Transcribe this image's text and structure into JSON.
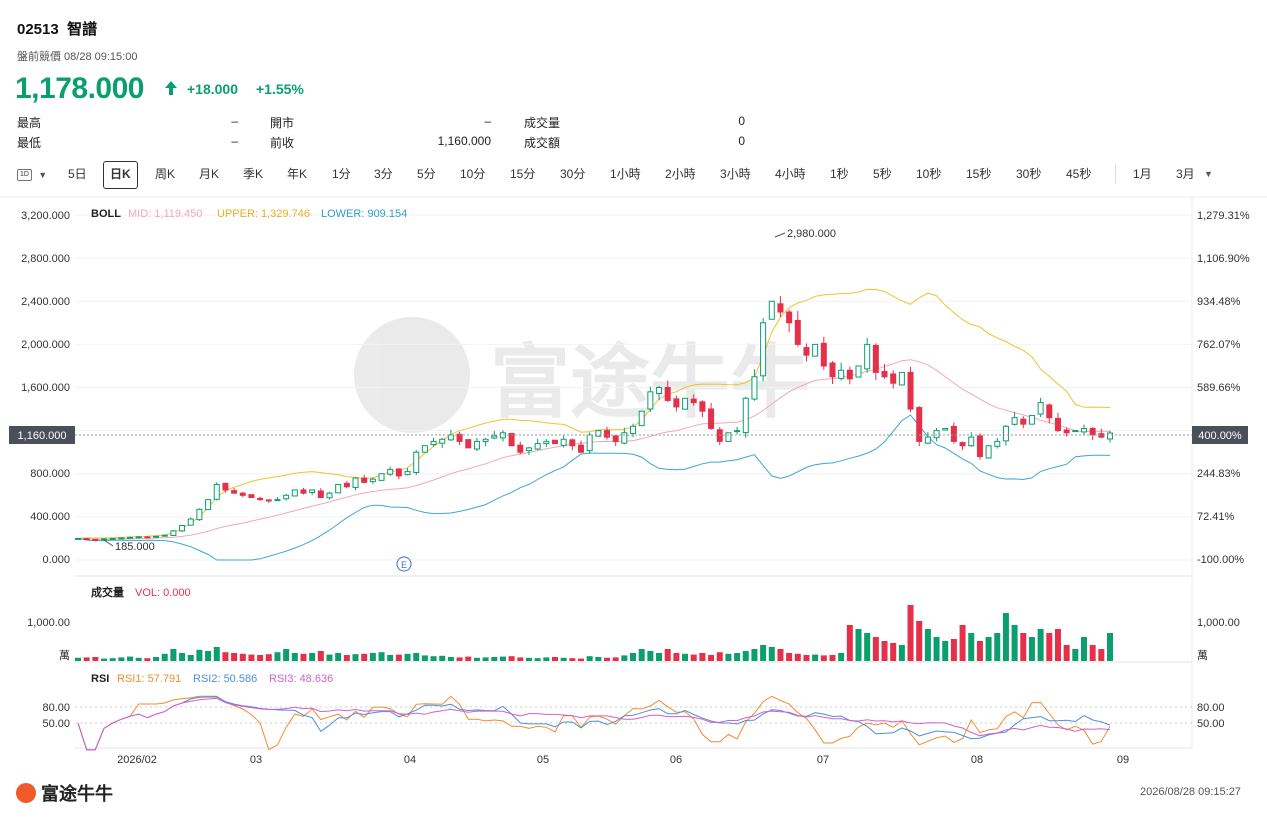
{
  "header": {
    "code": "02513",
    "name": "智譜",
    "status": "盤前競價 08/28 09:15:00",
    "price": "1,178.000",
    "change": "+18.000",
    "change_pct": "+1.55%"
  },
  "stats": [
    {
      "label": "最高",
      "value": "–"
    },
    {
      "label": "最低",
      "value": "–"
    },
    {
      "label": "開市",
      "value": "–"
    },
    {
      "label": "前收",
      "value": "1,160.000"
    },
    {
      "label": "成交量",
      "value": "0"
    },
    {
      "label": "成交額",
      "value": "0"
    }
  ],
  "tabs": {
    "period_icon": "1D",
    "items": [
      "5日",
      "日K",
      "周K",
      "月K",
      "季K",
      "年K",
      "1分",
      "3分",
      "5分",
      "10分",
      "15分",
      "30分",
      "1小時",
      "2小時",
      "3小時",
      "4小時",
      "1秒",
      "5秒",
      "10秒",
      "15秒",
      "30秒",
      "45秒",
      "1月",
      "3月"
    ],
    "active": "日K"
  },
  "boll": {
    "label": "BOLL",
    "mid": "MID: 1,119.450",
    "upper": "UPPER: 1,329.746",
    "lower": "LOWER: 909.154"
  },
  "price_axis": {
    "left_ticks": [
      "3,200.000",
      "2,800.000",
      "2,400.000",
      "2,000.000",
      "1,600.000",
      "1,160.000",
      "800.000",
      "400.000",
      "0.000"
    ],
    "right_ticks": [
      "1,279.31%",
      "1,106.90%",
      "934.48%",
      "762.07%",
      "589.66%",
      "400.00%",
      "244.83%",
      "72.41%",
      "-100.00%"
    ],
    "current_left": "1,160.000",
    "current_right": "400.00%",
    "high_label": "2,980.000",
    "low_label": "185.000",
    "event_marker": "E"
  },
  "volume": {
    "label": "成交量",
    "vol": "VOL: 0.000",
    "tick": "1,000.00",
    "unit": "萬"
  },
  "rsi": {
    "label": "RSI",
    "rsi1": "RSI1: 57.791",
    "rsi2": "RSI2: 50.586",
    "rsi3": "RSI3: 48.636",
    "ticks": [
      "80.00",
      "50.00"
    ]
  },
  "x_axis": [
    "2026/02",
    "03",
    "04",
    "05",
    "06",
    "07",
    "08",
    "09"
  ],
  "footer": {
    "brand": "富途牛牛",
    "timestamp": "2026/08/28 09:15:27"
  },
  "colors": {
    "up": "#0a9f6c",
    "down": "#e5304a",
    "mid": "#f2a7b8",
    "upper": "#f2c12e",
    "lower": "#3ba7d4",
    "rsi1": "#f08c2e",
    "rsi2": "#4a8fe0",
    "rsi3": "#d45fd0"
  },
  "chart_data": {
    "type": "candlestick",
    "ylim": [
      0,
      3200
    ],
    "ylabel_ticks": [
      0,
      400,
      800,
      1200,
      1600,
      2000,
      2400,
      2800,
      3200
    ],
    "close": [
      200,
      190,
      185,
      195,
      200,
      205,
      210,
      215,
      210,
      220,
      230,
      270,
      320,
      380,
      470,
      560,
      700,
      650,
      620,
      600,
      580,
      560,
      550,
      560,
      600,
      650,
      620,
      650,
      580,
      620,
      700,
      680,
      760,
      720,
      750,
      800,
      840,
      780,
      820,
      1000,
      1060,
      1100,
      1120,
      1160,
      1100,
      1040,
      1100,
      1120,
      1150,
      1180,
      1060,
      1000,
      1040,
      1080,
      1100,
      1080,
      1120,
      1060,
      1000,
      1160,
      1200,
      1140,
      1100,
      1180,
      1240,
      1380,
      1560,
      1600,
      1480,
      1420,
      1500,
      1460,
      1380,
      1220,
      1100,
      1180,
      1200,
      1500,
      1700,
      2200,
      2400,
      2300,
      2200,
      2000,
      1900,
      2000,
      1800,
      1700,
      1760,
      1680,
      1800,
      2000,
      1740,
      1700,
      1640,
      1740,
      1400,
      1100,
      1140,
      1200,
      1220,
      1100,
      1060,
      1140,
      960,
      1060,
      1100,
      1240,
      1320,
      1260,
      1340,
      1460,
      1320,
      1200,
      1180,
      1200,
      1220,
      1160,
      1140,
      1178
    ],
    "volume": [
      80,
      90,
      100,
      60,
      70,
      90,
      110,
      80,
      70,
      100,
      180,
      300,
      200,
      150,
      280,
      250,
      350,
      220,
      200,
      180,
      160,
      150,
      170,
      220,
      300,
      200,
      180,
      200,
      250,
      160,
      200,
      150,
      170,
      180,
      200,
      220,
      150,
      160,
      180,
      200,
      140,
      120,
      130,
      100,
      90,
      110,
      80,
      90,
      100,
      110,
      120,
      90,
      80,
      70,
      90,
      100,
      80,
      70,
      60,
      120,
      100,
      80,
      90,
      140,
      200,
      300,
      250,
      200,
      300,
      200,
      180,
      160,
      200,
      150,
      220,
      180,
      200,
      250,
      300,
      400,
      350,
      300,
      200,
      180,
      150,
      160,
      140,
      150,
      200,
      900,
      800,
      700,
      600,
      500,
      450,
      400,
      1400,
      1000,
      800,
      600,
      500,
      550,
      900,
      700,
      500,
      600,
      700,
      1200,
      900,
      700,
      600,
      800,
      700,
      800,
      400,
      300,
      600,
      400,
      300,
      700
    ]
  }
}
